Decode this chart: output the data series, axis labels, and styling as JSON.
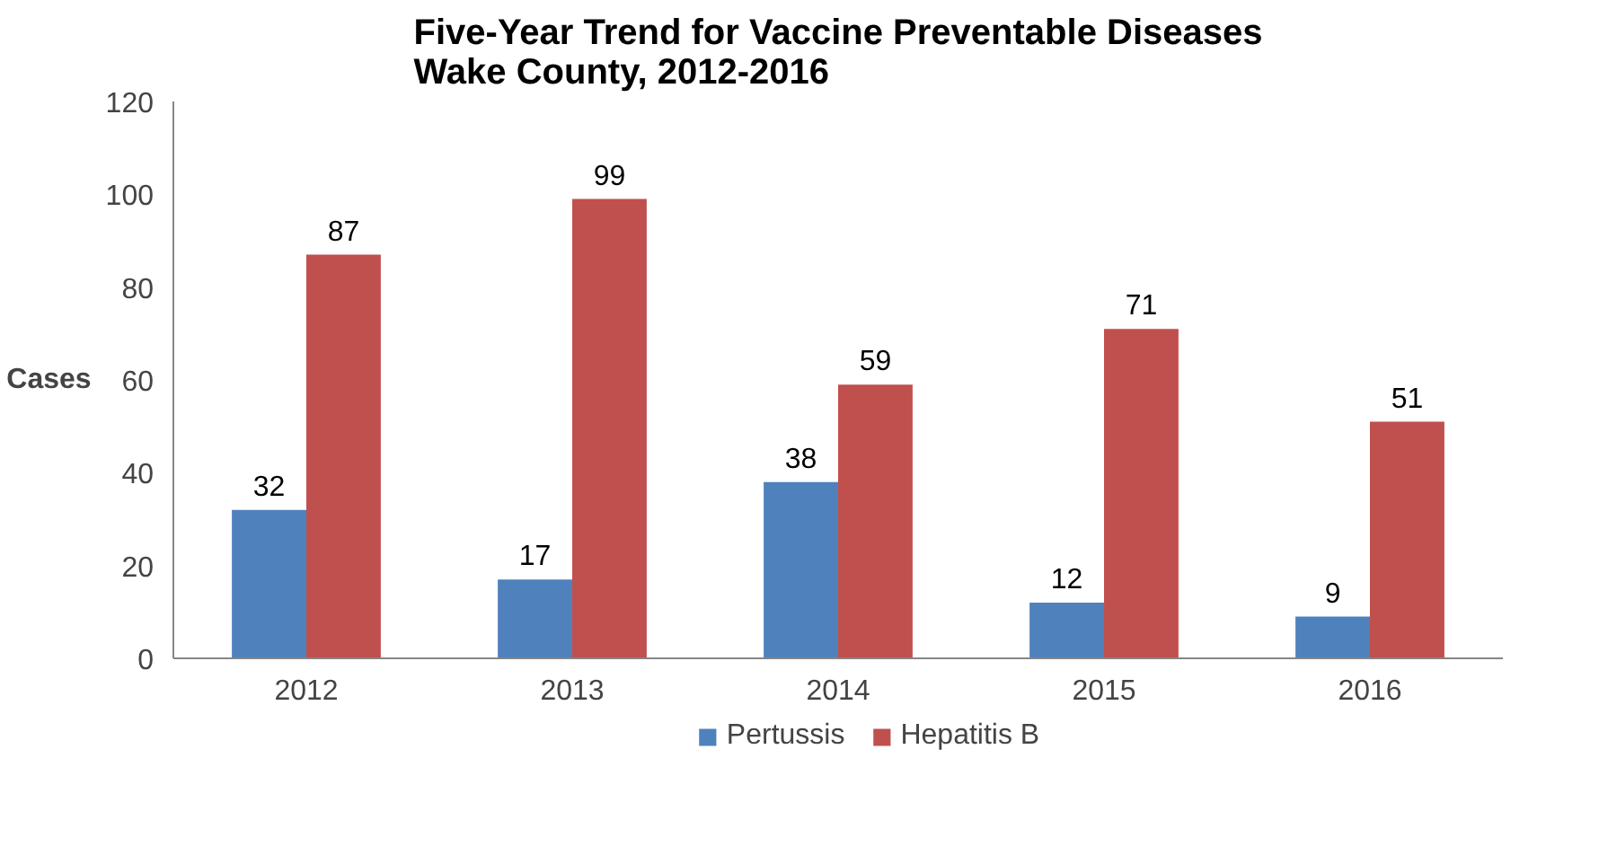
{
  "chart_data": {
    "type": "bar",
    "title": "Five-Year Trend for Vaccine Preventable Diseases\nWake County, 2012-2016",
    "ylabel": "Cases",
    "categories": [
      "2012",
      "2013",
      "2014",
      "2015",
      "2016"
    ],
    "series": [
      {
        "name": "Pertussis",
        "color": "#4f81bd",
        "values": [
          32,
          17,
          38,
          12,
          9
        ]
      },
      {
        "name": "Hepatitis B",
        "color": "#c0504d",
        "values": [
          87,
          99,
          59,
          71,
          51
        ]
      }
    ],
    "ylim": [
      0,
      120
    ],
    "yticks": [
      0,
      20,
      40,
      60,
      80,
      100,
      120
    ],
    "grid": false,
    "legend": "bottom",
    "data_labels": true
  }
}
